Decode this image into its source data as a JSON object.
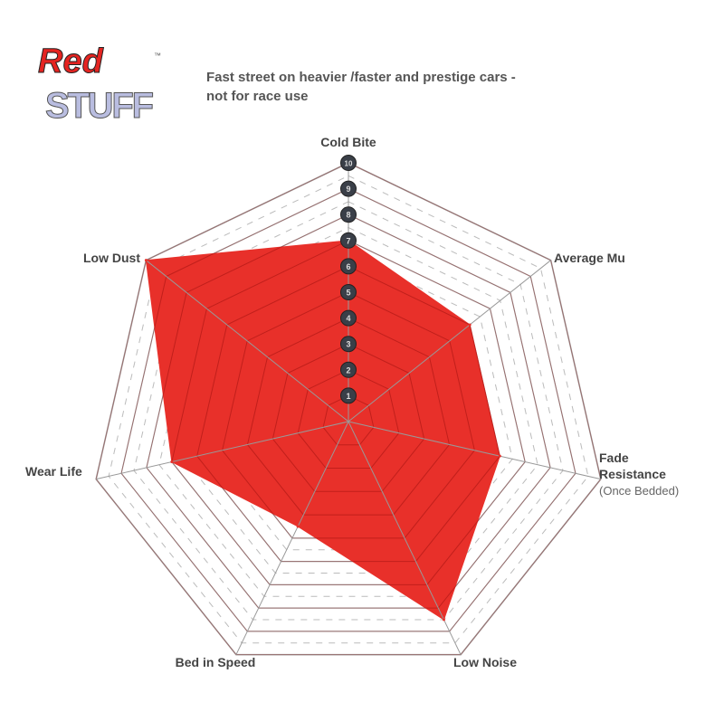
{
  "logo": {
    "text_top": "Red",
    "text_bottom": "STUFF",
    "tm": "™",
    "colors": {
      "red": "#e52421",
      "lavender": "#b9bde0"
    }
  },
  "subtitle_line1": "Fast street on heavier /faster and prestige cars -",
  "subtitle_line2": "not for race use",
  "chart_data": {
    "type": "radar",
    "title": "",
    "axes": [
      "Cold Bite",
      "Average Mu",
      "Fade Resistance",
      "Low Noise",
      "Bed in Speed",
      "Wear Life",
      "Low Dust"
    ],
    "axis_sublabels": {
      "Fade Resistance": "(Once Bedded)"
    },
    "scale": {
      "min": 0,
      "max": 10,
      "ticks": [
        1,
        2,
        3,
        4,
        5,
        6,
        7,
        8,
        9,
        10
      ]
    },
    "series": [
      {
        "values": [
          7,
          6,
          6,
          8.5,
          4.5,
          7,
          10
        ],
        "color": "#e8302a"
      }
    ],
    "grid": true
  }
}
